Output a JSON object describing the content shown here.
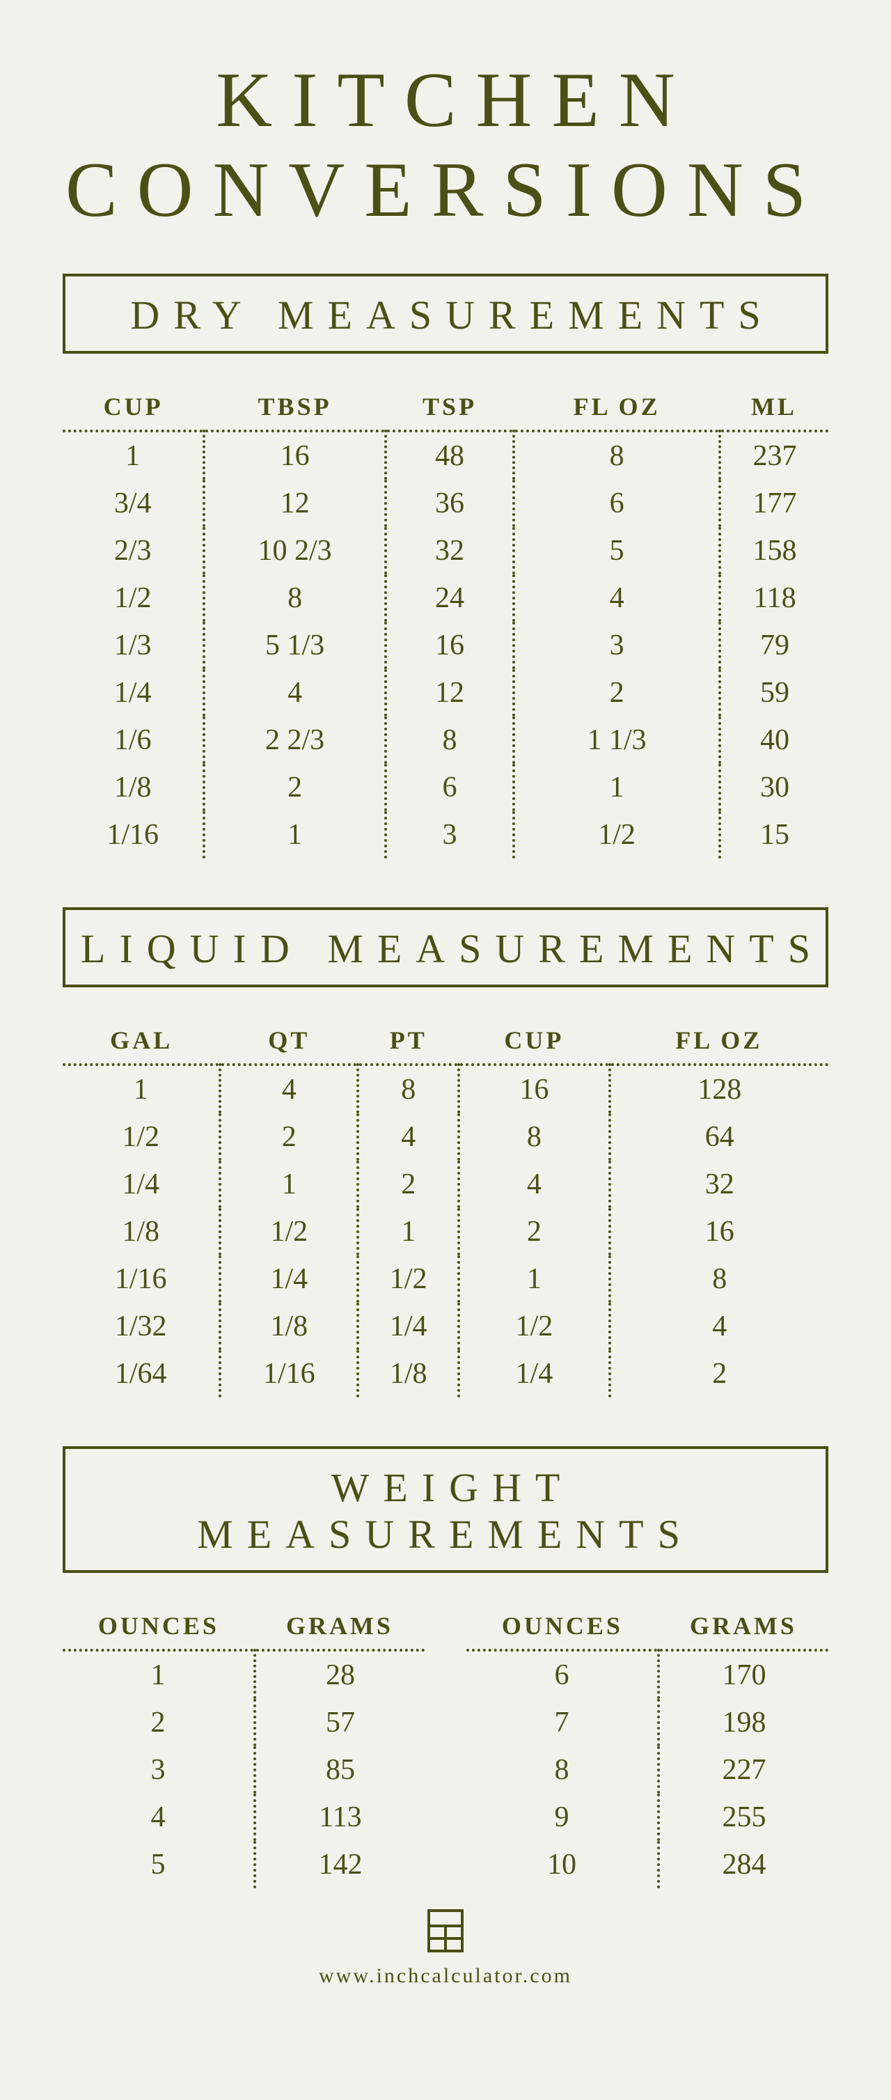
{
  "colors": {
    "ink": "#4a5016",
    "bg": "#f2f2ec"
  },
  "title_line1": "KITCHEN",
  "title_line2": "CONVERSIONS",
  "dry": {
    "heading": "DRY MEASUREMENTS",
    "columns": [
      "CUP",
      "TBSP",
      "TSP",
      "FL OZ",
      "ML"
    ],
    "rows": [
      [
        "1",
        "16",
        "48",
        "8",
        "237"
      ],
      [
        "3/4",
        "12",
        "36",
        "6",
        "177"
      ],
      [
        "2/3",
        "10 2/3",
        "32",
        "5",
        "158"
      ],
      [
        "1/2",
        "8",
        "24",
        "4",
        "118"
      ],
      [
        "1/3",
        "5 1/3",
        "16",
        "3",
        "79"
      ],
      [
        "1/4",
        "4",
        "12",
        "2",
        "59"
      ],
      [
        "1/6",
        "2 2/3",
        "8",
        "1 1/3",
        "40"
      ],
      [
        "1/8",
        "2",
        "6",
        "1",
        "30"
      ],
      [
        "1/16",
        "1",
        "3",
        "1/2",
        "15"
      ]
    ]
  },
  "liquid": {
    "heading": "LIQUID MEASUREMENTS",
    "columns": [
      "GAL",
      "QT",
      "PT",
      "CUP",
      "FL OZ"
    ],
    "rows": [
      [
        "1",
        "4",
        "8",
        "16",
        "128"
      ],
      [
        "1/2",
        "2",
        "4",
        "8",
        "64"
      ],
      [
        "1/4",
        "1",
        "2",
        "4",
        "32"
      ],
      [
        "1/8",
        "1/2",
        "1",
        "2",
        "16"
      ],
      [
        "1/16",
        "1/4",
        "1/2",
        "1",
        "8"
      ],
      [
        "1/32",
        "1/8",
        "1/4",
        "1/2",
        "4"
      ],
      [
        "1/64",
        "1/16",
        "1/8",
        "1/4",
        "2"
      ]
    ]
  },
  "weight": {
    "heading": "WEIGHT MEASUREMENTS",
    "columns": [
      "OUNCES",
      "GRAMS"
    ],
    "left_rows": [
      [
        "1",
        "28"
      ],
      [
        "2",
        "57"
      ],
      [
        "3",
        "85"
      ],
      [
        "4",
        "113"
      ],
      [
        "5",
        "142"
      ]
    ],
    "right_rows": [
      [
        "6",
        "170"
      ],
      [
        "7",
        "198"
      ],
      [
        "8",
        "227"
      ],
      [
        "9",
        "255"
      ],
      [
        "10",
        "284"
      ]
    ]
  },
  "footer_url": "www.inchcalculator.com"
}
